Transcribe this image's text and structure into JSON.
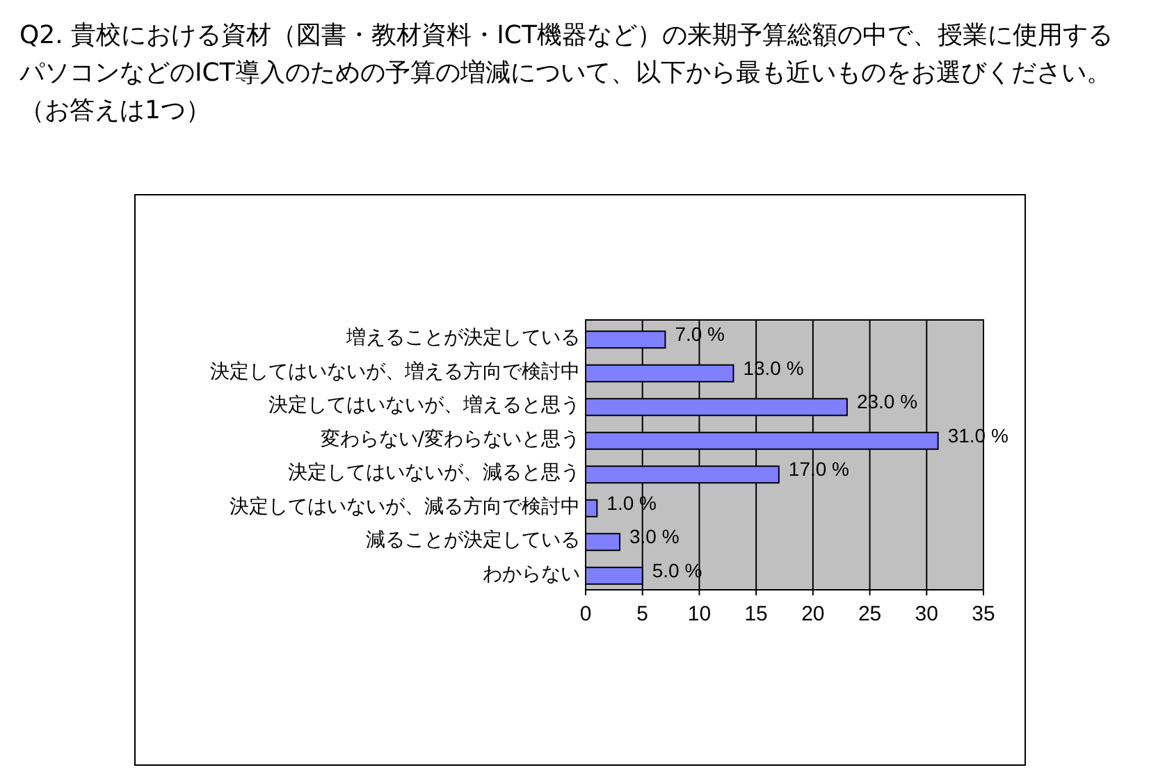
{
  "chart_data": {
    "type": "bar",
    "orientation": "horizontal",
    "title": "Q2. 貴校における資材（図書・教材資料・ICT機器など）の来期予算総額の中で、授業に使用するパソコンなどのICT導入のための予算の増減について、以下から最も近いものをお選びください。（お答えは1つ）",
    "categories": [
      "増えることが決定している",
      "決定してはいないが、増える方向で検討中",
      "決定してはいないが、増えると思う",
      "変わらない/変わらないと思う",
      "決定してはいないが、減ると思う",
      "決定してはいないが、減る方向で検討中",
      "減ることが決定している",
      "わからない"
    ],
    "values": [
      7,
      13,
      23,
      31,
      17,
      1,
      3,
      5
    ],
    "value_labels": [
      "7.0 %",
      "13.0 %",
      "23.0 %",
      "31.0 %",
      "17.0 %",
      "1.0 %",
      "3.0 %",
      "5.0 %"
    ],
    "color": "#8080ff",
    "xlim": [
      0,
      35
    ],
    "xticks": [
      0,
      5,
      10,
      15,
      20,
      25,
      30,
      35
    ],
    "grid": "x"
  }
}
